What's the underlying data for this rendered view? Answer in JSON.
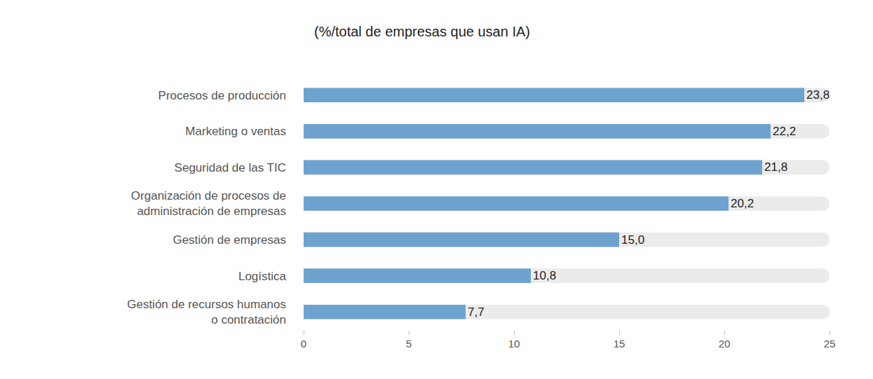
{
  "chart_data": {
    "type": "bar",
    "orientation": "horizontal",
    "title": "(%/total de empresas que usan IA)",
    "categories": [
      "Procesos de producción",
      "Marketing o ventas",
      "Seguridad de las TIC",
      "Organización de procesos de administración de empresas",
      "Gestión de empresas",
      "Logística",
      "Gestión de recursos humanos o contratación"
    ],
    "values": [
      23.8,
      22.2,
      21.8,
      20.2,
      15.0,
      10.8,
      7.7
    ],
    "value_labels": [
      "23,8",
      "22,2",
      "21,8",
      "20,2",
      "15,0",
      "10,8",
      "7,7"
    ],
    "data_labels": true,
    "color": "#6fa3cf",
    "xlim": [
      0,
      25
    ],
    "xticks": [
      0,
      5,
      10,
      15,
      20,
      25
    ],
    "grid": false
  }
}
